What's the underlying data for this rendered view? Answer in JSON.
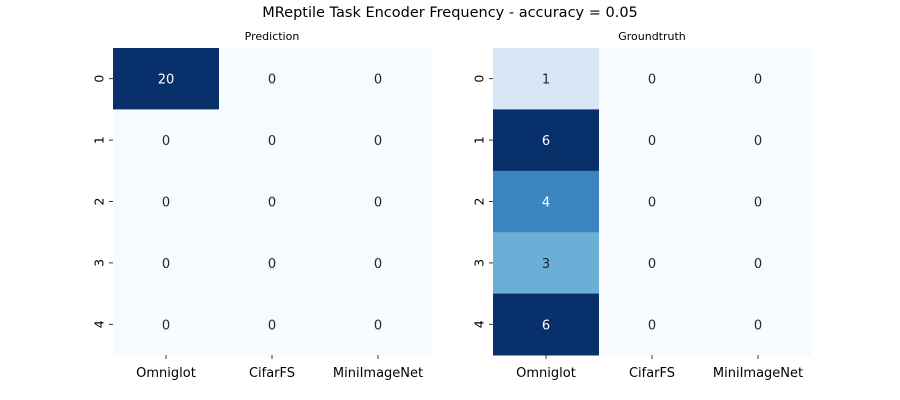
{
  "title": "MReptile Task Encoder Frequency - accuracy = 0.05",
  "colormap": {
    "low": "#f7fbff",
    "mid1": "#c6dbef",
    "mid2": "#6baed6",
    "mid3": "#2171b5",
    "high": "#08306b"
  },
  "chart_data": [
    {
      "type": "heatmap",
      "title": "Prediction",
      "x_categories": [
        "Omniglot",
        "CifarFS",
        "MiniImageNet"
      ],
      "y_categories": [
        "0",
        "1",
        "2",
        "3",
        "4"
      ],
      "values": [
        [
          20,
          0,
          0
        ],
        [
          0,
          0,
          0
        ],
        [
          0,
          0,
          0
        ],
        [
          0,
          0,
          0
        ],
        [
          0,
          0,
          0
        ]
      ],
      "color_range": [
        0,
        20
      ],
      "colorbar": false
    },
    {
      "type": "heatmap",
      "title": "Groundtruth",
      "x_categories": [
        "Omniglot",
        "CifarFS",
        "MiniImageNet"
      ],
      "y_categories": [
        "0",
        "1",
        "2",
        "3",
        "4"
      ],
      "values": [
        [
          1,
          0,
          0
        ],
        [
          6,
          0,
          0
        ],
        [
          4,
          0,
          0
        ],
        [
          3,
          0,
          0
        ],
        [
          6,
          0,
          0
        ]
      ],
      "color_range": [
        0,
        6
      ],
      "colorbar": false
    }
  ]
}
